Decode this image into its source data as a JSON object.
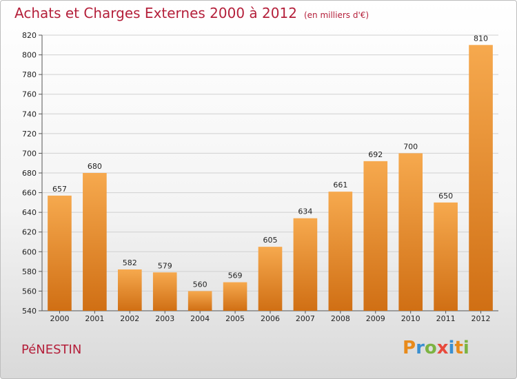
{
  "header": {
    "title": "Achats et Charges Externes 2000 à 2012",
    "subtitle": "(en milliers d'€)"
  },
  "footer": {
    "commune": "PéNESTIN",
    "logo_text": "Proxiti",
    "logo_colors": [
      "#e88a1a",
      "#3a8fd0",
      "#7cb342",
      "#e84a3c",
      "#3a8fd0",
      "#e88a1a",
      "#7cb342"
    ]
  },
  "colors": {
    "bar_light": "#f6a94e",
    "bar_dark": "#d06f14",
    "title": "#b41f3a"
  },
  "chart_data": {
    "type": "bar",
    "title": "Achats et Charges Externes 2000 à 2012",
    "subtitle": "(en milliers d'€)",
    "xlabel": "",
    "ylabel": "",
    "categories": [
      "2000",
      "2001",
      "2002",
      "2003",
      "2004",
      "2005",
      "2006",
      "2007",
      "2008",
      "2009",
      "2010",
      "2011",
      "2012"
    ],
    "values": [
      657,
      680,
      582,
      579,
      560,
      569,
      605,
      634,
      661,
      692,
      700,
      650,
      810
    ],
    "ylim": [
      540,
      820
    ],
    "yticks": [
      540,
      560,
      580,
      600,
      620,
      640,
      660,
      680,
      700,
      720,
      740,
      760,
      780,
      800,
      820
    ],
    "grid": true,
    "legend": "none"
  }
}
